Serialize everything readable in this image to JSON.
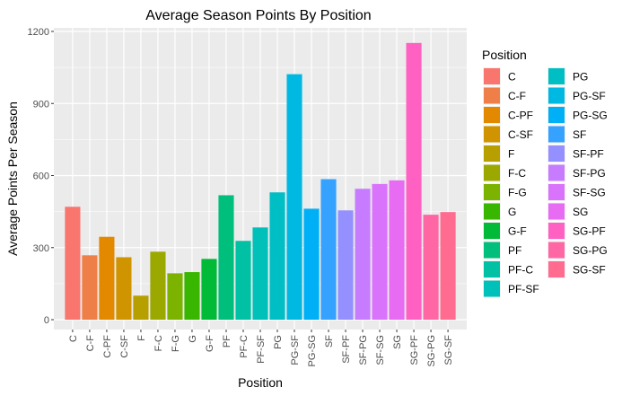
{
  "chart_data": {
    "type": "bar",
    "title": "Average Season Points By Position",
    "xlabel": "Position",
    "ylabel": "Average Points Per Season",
    "ylim": [
      0,
      1200
    ],
    "y_ticks": [
      0,
      300,
      600,
      900,
      1200
    ],
    "grid": true,
    "legend_title": "Position",
    "legend_position": "right",
    "categories": [
      "C",
      "C-F",
      "C-PF",
      "C-SF",
      "F",
      "F-C",
      "F-G",
      "G",
      "G-F",
      "PF",
      "PF-C",
      "PF-SF",
      "PG",
      "PG-SF",
      "PG-SG",
      "SF",
      "SF-PF",
      "SF-PG",
      "SF-SG",
      "SG",
      "SG-PF",
      "SG-PG",
      "SG-SF"
    ],
    "values": [
      470,
      268,
      345,
      260,
      100,
      283,
      193,
      198,
      253,
      518,
      328,
      384,
      530,
      1022,
      462,
      585,
      455,
      545,
      565,
      580,
      1152,
      437,
      448
    ],
    "colors": [
      "#F8766D",
      "#EF7F48",
      "#E38900",
      "#D09400",
      "#B79F00",
      "#9BA800",
      "#7BB300",
      "#39B600",
      "#00BA38",
      "#00BF7D",
      "#00C1A3",
      "#00C0BA",
      "#00BFC4",
      "#00B9E3",
      "#00B0F6",
      "#35A2FF",
      "#9590FF",
      "#C77CFF",
      "#D973FC",
      "#E76BF3",
      "#FF61C3",
      "#FF67A4",
      "#FF6C90"
    ]
  }
}
